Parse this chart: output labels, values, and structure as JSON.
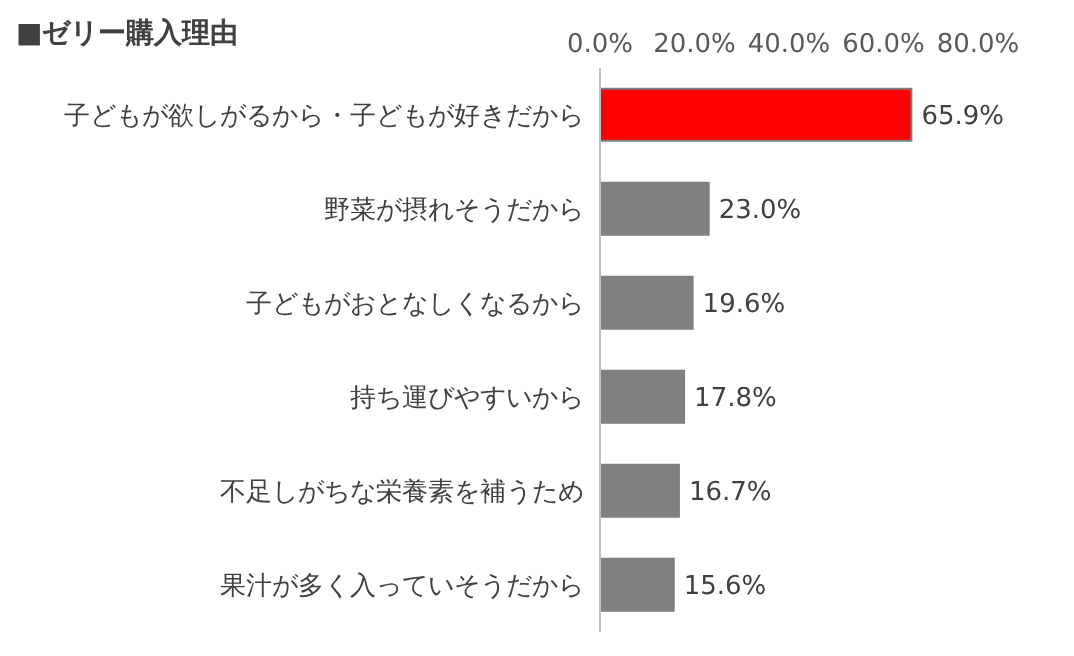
{
  "chart_data": {
    "type": "bar",
    "orientation": "horizontal",
    "title": "■ゼリー購入理由",
    "categories": [
      "子どもが欲しがるから・子どもが好きだから",
      "野菜が摂れそうだから",
      "子どもがおとなしくなるから",
      "持ち運びやすいから",
      "不足しがちな栄養素を補うため",
      "果汁が多く入っていそうだから"
    ],
    "values": [
      65.9,
      23.0,
      19.6,
      17.8,
      16.7,
      15.6
    ],
    "colors": [
      "#ff0000",
      "#808080",
      "#808080",
      "#808080",
      "#808080",
      "#808080"
    ],
    "value_labels": [
      "65.9%",
      "23.0%",
      "19.6%",
      "17.8%",
      "16.7%",
      "15.6%"
    ],
    "xlim": [
      0,
      80
    ],
    "xticks": [
      {
        "value": 0,
        "label": "0.0%"
      },
      {
        "value": 20,
        "label": "20.0%"
      },
      {
        "value": 40,
        "label": "40.0%"
      },
      {
        "value": 60,
        "label": "60.0%"
      },
      {
        "value": 80,
        "label": "80.0%"
      }
    ],
    "grid": false
  }
}
